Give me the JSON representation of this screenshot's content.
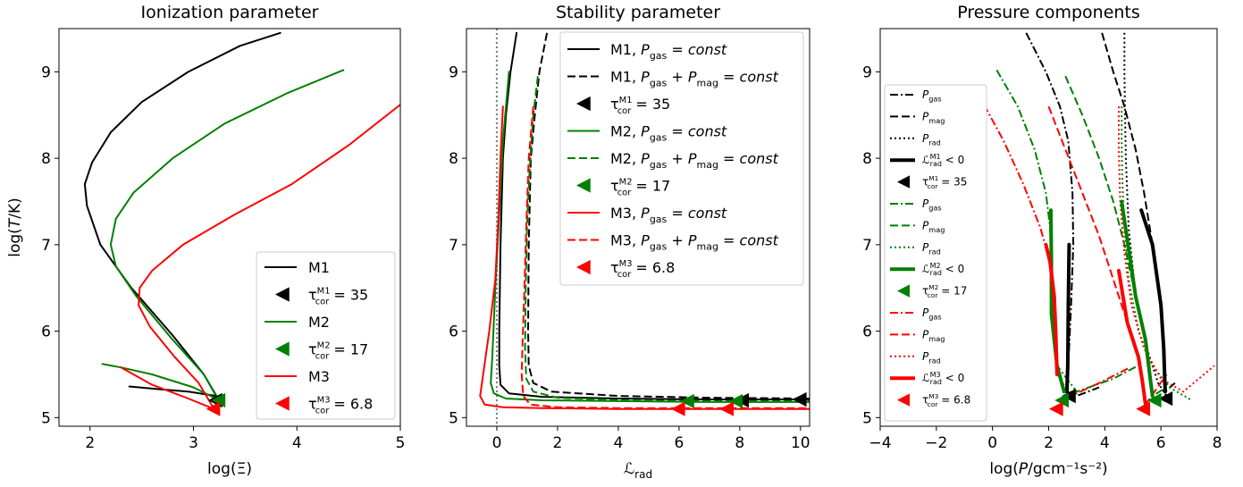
{
  "chart_data": [
    {
      "type": "line",
      "title": "Ionization parameter",
      "xlabel": "log(Ξ)",
      "ylabel": "log(T/K)",
      "xlim": [
        1.7,
        5.0
      ],
      "ylim": [
        4.9,
        9.5
      ],
      "xticks": [
        "2",
        "3",
        "4",
        "5"
      ],
      "yticks": [
        "5",
        "6",
        "7",
        "8",
        "9"
      ],
      "legend_position": "lower-right",
      "legend": [
        "M1",
        "τcor M1 = 35",
        "M2",
        "τcor M2 = 17",
        "M3",
        "τcor M3 = 6.8"
      ],
      "series": [
        {
          "name": "M1",
          "color": "#000000",
          "style": "solid",
          "x": [
            3.84,
            3.45,
            2.95,
            2.5,
            2.2,
            2.02,
            1.95,
            1.97,
            2.1,
            2.4,
            2.8,
            3.1,
            3.22,
            2.95,
            2.65,
            2.38
          ],
          "y": [
            9.45,
            9.3,
            9.0,
            8.65,
            8.3,
            7.95,
            7.7,
            7.45,
            7.0,
            6.5,
            5.95,
            5.5,
            5.25,
            5.3,
            5.33,
            5.36
          ]
        },
        {
          "name": "M2",
          "color": "#008000",
          "style": "solid",
          "x": [
            4.45,
            3.9,
            3.3,
            2.8,
            2.42,
            2.25,
            2.2,
            2.25,
            2.45,
            2.8,
            3.1,
            3.25,
            3.0,
            2.6,
            2.3,
            2.12
          ],
          "y": [
            9.02,
            8.75,
            8.4,
            8.0,
            7.6,
            7.3,
            7.0,
            6.75,
            6.4,
            5.9,
            5.5,
            5.2,
            5.35,
            5.5,
            5.58,
            5.62
          ]
        },
        {
          "name": "M3",
          "color": "#ff0000",
          "style": "solid",
          "x": [
            5.0,
            4.5,
            3.95,
            3.4,
            2.9,
            2.6,
            2.48,
            2.47,
            2.58,
            2.82,
            3.05,
            3.2,
            2.95,
            2.6,
            2.3
          ],
          "y": [
            8.62,
            8.15,
            7.7,
            7.35,
            7.0,
            6.7,
            6.5,
            6.3,
            6.05,
            5.7,
            5.4,
            5.1,
            5.22,
            5.38,
            5.58
          ]
        }
      ],
      "markers": [
        {
          "name": "τcor M1 = 35",
          "label_sup": "M1",
          "value": "35",
          "color": "#000000",
          "x": 3.22,
          "y": 5.2
        },
        {
          "name": "τcor M2 = 17",
          "label_sup": "M2",
          "value": "17",
          "color": "#008000",
          "x": 3.25,
          "y": 5.2
        },
        {
          "name": "τcor M3 = 6.8",
          "label_sup": "M3",
          "value": "6.8",
          "color": "#ff0000",
          "x": 3.2,
          "y": 5.1
        }
      ]
    },
    {
      "type": "line",
      "title": "Stability parameter",
      "xlabel": "ℒrad",
      "ylabel": "",
      "xlim": [
        -1.0,
        10.3
      ],
      "ylim": [
        4.9,
        9.5
      ],
      "xticks": [
        "0",
        "2",
        "4",
        "6",
        "8",
        "10"
      ],
      "yticks": [
        "5",
        "6",
        "7",
        "8",
        "9"
      ],
      "vline_x": 0,
      "legend_position": "top-right",
      "legend": [
        "M1, Pgas = const",
        "M1, Pgas + Pmag = const",
        "τcor M1 = 35",
        "M2, Pgas = const",
        "M2, Pgas + Pmag = const",
        "τcor M2 = 17",
        "M3, Pgas = const",
        "M3, Pgas + Pmag = const",
        "τcor M3 = 6.8"
      ],
      "series": [
        {
          "name": "M1, Pgas = const",
          "color": "#000000",
          "style": "solid",
          "x": [
            0.65,
            0.45,
            0.3,
            0.2,
            0.12,
            0.08,
            0.08,
            0.12,
            0.4,
            1.5,
            4.0,
            7.0,
            10.3
          ],
          "y": [
            9.45,
            9.0,
            8.5,
            8.0,
            7.0,
            6.0,
            5.6,
            5.38,
            5.28,
            5.24,
            5.22,
            5.21,
            5.21
          ]
        },
        {
          "name": "M1, Pgas + Pmag = const",
          "color": "#000000",
          "style": "dashed",
          "x": [
            1.65,
            1.4,
            1.25,
            1.12,
            1.05,
            1.03,
            1.05,
            1.2,
            1.8,
            4.0,
            7.0,
            10.3
          ],
          "y": [
            9.45,
            9.0,
            8.5,
            8.0,
            7.0,
            6.0,
            5.6,
            5.4,
            5.3,
            5.25,
            5.23,
            5.22
          ]
        },
        {
          "name": "M2, Pgas = const",
          "color": "#008000",
          "style": "solid",
          "x": [
            0.4,
            0.3,
            0.2,
            0.1,
            -0.05,
            -0.15,
            -0.2,
            -0.1,
            0.3,
            1.5,
            4.0,
            7.0,
            10.3
          ],
          "y": [
            9.0,
            8.6,
            8.2,
            7.5,
            6.5,
            5.7,
            5.4,
            5.28,
            5.22,
            5.2,
            5.19,
            5.18,
            5.18
          ]
        },
        {
          "name": "M2, Pgas + Pmag = const",
          "color": "#008000",
          "style": "dashed",
          "x": [
            1.35,
            1.2,
            1.1,
            1.0,
            0.95,
            0.93,
            0.97,
            1.2,
            2.0,
            4.0,
            7.0,
            10.3
          ],
          "y": [
            8.95,
            8.5,
            8.0,
            7.3,
            6.5,
            5.8,
            5.45,
            5.3,
            5.23,
            5.2,
            5.19,
            5.19
          ]
        },
        {
          "name": "M3, Pgas = const",
          "color": "#ff0000",
          "style": "solid",
          "x": [
            0.2,
            0.12,
            0.05,
            -0.05,
            -0.25,
            -0.45,
            -0.55,
            -0.4,
            0.2,
            1.5,
            4.0,
            7.0,
            10.3
          ],
          "y": [
            8.6,
            8.0,
            7.3,
            6.6,
            6.0,
            5.5,
            5.25,
            5.15,
            5.12,
            5.11,
            5.1,
            5.1,
            5.1
          ]
        },
        {
          "name": "M3, Pgas + Pmag = const",
          "color": "#ff0000",
          "style": "dashed",
          "x": [
            1.2,
            1.05,
            0.97,
            0.9,
            0.85,
            0.82,
            0.87,
            1.1,
            2.0,
            4.0,
            7.0,
            10.3
          ],
          "y": [
            8.6,
            8.0,
            7.2,
            6.4,
            5.9,
            5.5,
            5.25,
            5.15,
            5.12,
            5.11,
            5.11,
            5.11
          ]
        }
      ],
      "markers": [
        {
          "name": "τcor M1 = 35",
          "label_sup": "M1",
          "value": "35",
          "color": "#000000",
          "x": 8.1,
          "y": 5.2
        },
        {
          "name": "τcor M1 = 35",
          "label_sup": "M1",
          "value": "35",
          "color": "#000000",
          "x": 10.0,
          "y": 5.21
        },
        {
          "name": "τcor M2 = 17",
          "label_sup": "M2",
          "value": "17",
          "color": "#008000",
          "x": 6.3,
          "y": 5.19
        },
        {
          "name": "τcor M2 = 17",
          "label_sup": "M2",
          "value": "17",
          "color": "#008000",
          "x": 7.9,
          "y": 5.19
        },
        {
          "name": "τcor M3 = 6.8",
          "label_sup": "M3",
          "value": "6.8",
          "color": "#ff0000",
          "x": 6.0,
          "y": 5.1
        },
        {
          "name": "τcor M3 = 6.8",
          "label_sup": "M3",
          "value": "6.8",
          "color": "#ff0000",
          "x": 7.6,
          "y": 5.1
        }
      ]
    },
    {
      "type": "line",
      "title": "Pressure components",
      "xlabel": "log(P/gcm⁻¹s⁻²)",
      "ylabel": "",
      "xlim": [
        -4.0,
        8.0
      ],
      "ylim": [
        4.9,
        9.5
      ],
      "xticks": [
        "−4",
        "−2",
        "0",
        "2",
        "4",
        "6",
        "8"
      ],
      "yticks": [
        "5",
        "6",
        "7",
        "8",
        "9"
      ],
      "legend_position": "left",
      "legend": [
        "Pgas",
        "Pmag",
        "Prad",
        "ℒrad M1 < 0",
        "τcor M1 = 35",
        "Pgas",
        "Pmag",
        "Prad",
        "ℒrad M2 < 0",
        "τcor M2 = 17",
        "Pgas",
        "Pmag",
        "Prad",
        "ℒrad M3 < 0",
        "τcor M3 = 6.8"
      ],
      "series": [
        {
          "name": "M1 Pgas",
          "color": "#000000",
          "style": "dashdot",
          "x": [
            1.2,
            1.9,
            2.4,
            2.7,
            2.85,
            2.88,
            2.8,
            2.7,
            2.65,
            3.0,
            3.8
          ],
          "y": [
            9.45,
            9.0,
            8.6,
            8.2,
            7.6,
            7.0,
            6.3,
            5.6,
            5.3,
            5.25,
            5.35
          ]
        },
        {
          "name": "M1 Pmag",
          "color": "#000000",
          "style": "dashed",
          "x": [
            3.9,
            4.3,
            4.7,
            5.1,
            5.4,
            5.7,
            6.0,
            6.1,
            6.15,
            6.5
          ],
          "y": [
            9.45,
            9.0,
            8.6,
            8.1,
            7.6,
            7.0,
            6.3,
            5.8,
            5.3,
            5.4
          ]
        },
        {
          "name": "M1 Prad",
          "color": "#000000",
          "style": "dotted",
          "x": [
            4.7,
            4.7,
            4.72,
            4.75,
            4.85,
            5.1,
            5.5,
            5.9,
            6.3
          ],
          "y": [
            9.45,
            9.0,
            8.5,
            8.0,
            7.2,
            6.4,
            5.8,
            5.4,
            5.2
          ]
        },
        {
          "name": "M2 Pgas",
          "color": "#008000",
          "style": "dashdot",
          "x": [
            0.15,
            0.9,
            1.5,
            1.9,
            2.05,
            2.1,
            2.1,
            2.3,
            3.0,
            4.3,
            5.3
          ],
          "y": [
            9.02,
            8.6,
            8.1,
            7.6,
            7.2,
            6.8,
            6.2,
            5.6,
            5.3,
            5.45,
            5.62
          ]
        },
        {
          "name": "M2 Pmag",
          "color": "#008000",
          "style": "dashed",
          "x": [
            2.6,
            3.2,
            3.8,
            4.3,
            4.7,
            5.1,
            5.45,
            5.6,
            5.7,
            6.2
          ],
          "y": [
            8.95,
            8.5,
            8.0,
            7.5,
            7.0,
            6.4,
            5.9,
            5.5,
            5.25,
            5.35
          ]
        },
        {
          "name": "M2 Prad",
          "color": "#008000",
          "style": "dotted",
          "x": [
            4.6,
            4.6,
            4.62,
            4.68,
            4.85,
            5.2,
            5.7,
            6.3,
            7.1
          ],
          "y": [
            8.6,
            8.2,
            7.8,
            7.3,
            6.6,
            6.0,
            5.6,
            5.35,
            5.2
          ]
        },
        {
          "name": "M3 Pgas",
          "color": "#ff0000",
          "style": "dashdot",
          "x": [
            -0.3,
            0.4,
            1.1,
            1.7,
            2.05,
            2.2,
            2.25,
            2.3,
            2.8,
            3.8,
            4.9
          ],
          "y": [
            8.62,
            8.2,
            7.7,
            7.2,
            6.8,
            6.4,
            6.0,
            5.5,
            5.25,
            5.4,
            5.58
          ]
        },
        {
          "name": "M3 Pmag",
          "color": "#ff0000",
          "style": "dashed",
          "x": [
            2.0,
            2.6,
            3.2,
            3.8,
            4.3,
            4.8,
            5.2,
            5.35,
            5.45,
            6.2
          ],
          "y": [
            8.6,
            8.1,
            7.6,
            7.1,
            6.6,
            6.1,
            5.7,
            5.4,
            5.15,
            5.5
          ]
        },
        {
          "name": "M3 Prad",
          "color": "#ff0000",
          "style": "dotted",
          "x": [
            4.5,
            4.5,
            4.55,
            4.7,
            4.95,
            5.4,
            6.0,
            6.8,
            7.9
          ],
          "y": [
            8.6,
            8.1,
            7.5,
            6.9,
            6.3,
            5.8,
            5.45,
            5.3,
            5.6
          ]
        },
        {
          "name": "M1 ℒrad < 0",
          "color": "#000000",
          "style": "thick",
          "x": [
            2.73,
            2.7,
            2.68,
            2.65
          ],
          "y": [
            7.0,
            6.3,
            5.6,
            5.3
          ]
        },
        {
          "name": "M1 ℒrad < 0",
          "color": "#000000",
          "style": "thick",
          "x": [
            5.3,
            5.7,
            6.0,
            6.1,
            6.15
          ],
          "y": [
            7.4,
            7.0,
            6.3,
            5.8,
            5.3
          ]
        },
        {
          "name": "M2 ℒrad < 0",
          "color": "#008000",
          "style": "thick",
          "x": [
            2.08,
            2.1,
            2.1,
            2.3,
            2.55
          ],
          "y": [
            7.4,
            6.8,
            6.2,
            5.6,
            5.3
          ]
        },
        {
          "name": "M2 ℒrad < 0",
          "color": "#008000",
          "style": "thick",
          "x": [
            4.6,
            5.1,
            5.45,
            5.6,
            5.7
          ],
          "y": [
            7.5,
            6.4,
            5.9,
            5.5,
            5.25
          ]
        },
        {
          "name": "M3 ℒrad < 0",
          "color": "#ff0000",
          "style": "thick",
          "x": [
            1.9,
            2.05,
            2.2,
            2.25,
            2.3
          ],
          "y": [
            7.0,
            6.8,
            6.4,
            6.0,
            5.5
          ]
        },
        {
          "name": "M3 ℒrad < 0",
          "color": "#ff0000",
          "style": "thick",
          "x": [
            4.5,
            4.8,
            5.2,
            5.35,
            5.45
          ],
          "y": [
            6.7,
            6.1,
            5.7,
            5.4,
            5.15
          ]
        }
      ],
      "markers": [
        {
          "name": "τcor M1 = 35",
          "label_sup": "M1",
          "value": "35",
          "color": "#000000",
          "x": 2.75,
          "y": 5.25
        },
        {
          "name": "τcor M1 = 35",
          "label_sup": "M1",
          "value": "35",
          "color": "#000000",
          "x": 6.2,
          "y": 5.22
        },
        {
          "name": "τcor M2 = 17",
          "label_sup": "M2",
          "value": "17",
          "color": "#008000",
          "x": 2.5,
          "y": 5.2
        },
        {
          "name": "τcor M2 = 17",
          "label_sup": "M2",
          "value": "17",
          "color": "#008000",
          "x": 5.8,
          "y": 5.2
        },
        {
          "name": "τcor M3 = 6.8",
          "label_sup": "M3",
          "value": "6.8",
          "color": "#ff0000",
          "x": 2.3,
          "y": 5.1
        },
        {
          "name": "τcor M3 = 6.8",
          "label_sup": "M3",
          "value": "6.8",
          "color": "#ff0000",
          "x": 5.4,
          "y": 5.1
        }
      ]
    }
  ]
}
